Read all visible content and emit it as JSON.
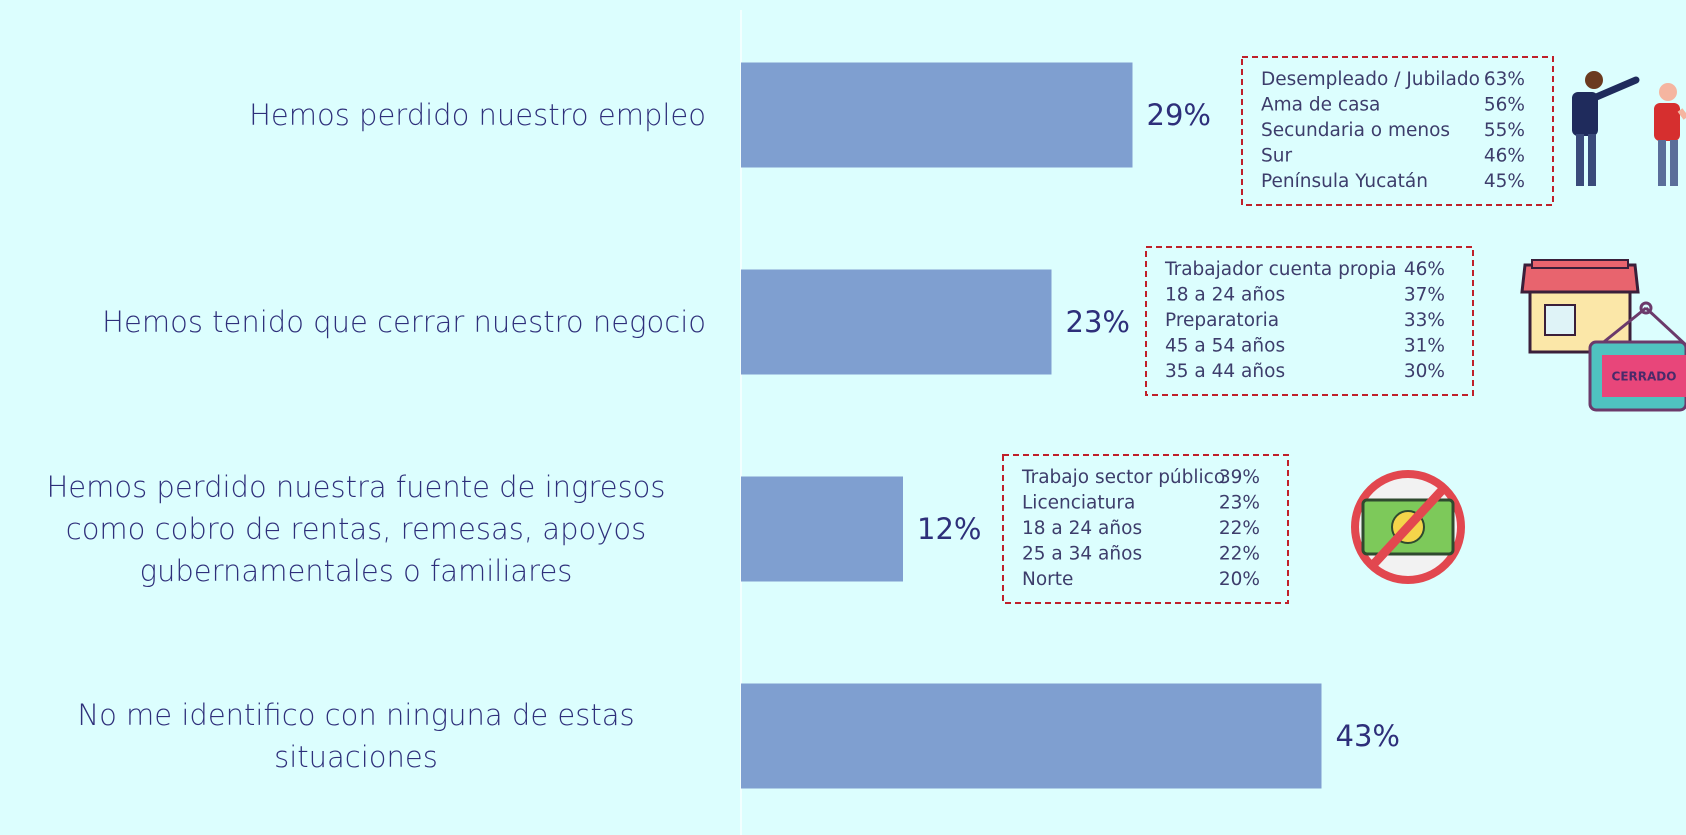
{
  "chart_data": {
    "type": "bar",
    "orientation": "horizontal",
    "categories": [
      "Hemos perdido nuestro empleo",
      "Hemos tenido que cerrar nuestro negocio",
      "Hemos perdido nuestra fuente de ingresos como cobro de rentas, remesas, apoyos gubernamentales o familiares",
      "No me identifico con ninguna de estas situaciones"
    ],
    "values": [
      29,
      23,
      12,
      43
    ],
    "value_labels": [
      "29%",
      "23%",
      "12%",
      "43%"
    ],
    "color": "#7f9fd0",
    "xlim": [
      0,
      70
    ],
    "annotations": [
      {
        "row": 0,
        "items": [
          [
            "Desempleado / Jubilado",
            "63%"
          ],
          [
            "Ama de casa",
            "56%"
          ],
          [
            "Secundaria o menos",
            "55%"
          ],
          [
            "Sur",
            "46%"
          ],
          [
            "Península Yucatán",
            "45%"
          ]
        ]
      },
      {
        "row": 1,
        "items": [
          [
            "Trabajador cuenta propia",
            "46%"
          ],
          [
            "18 a 24 años",
            "37%"
          ],
          [
            "Preparatoria",
            "33%"
          ],
          [
            "45 a 54 años",
            "31%"
          ],
          [
            "35 a 44 años",
            "30%"
          ]
        ]
      },
      {
        "row": 2,
        "items": [
          [
            "Trabajo sector público",
            "39%"
          ],
          [
            "Licenciatura",
            "23%"
          ],
          [
            "18 a 24 años",
            "22%"
          ],
          [
            "25 a 34 años",
            "22%"
          ],
          [
            "Norte",
            "20%"
          ]
        ]
      }
    ],
    "sign_label": "CERRADO"
  }
}
